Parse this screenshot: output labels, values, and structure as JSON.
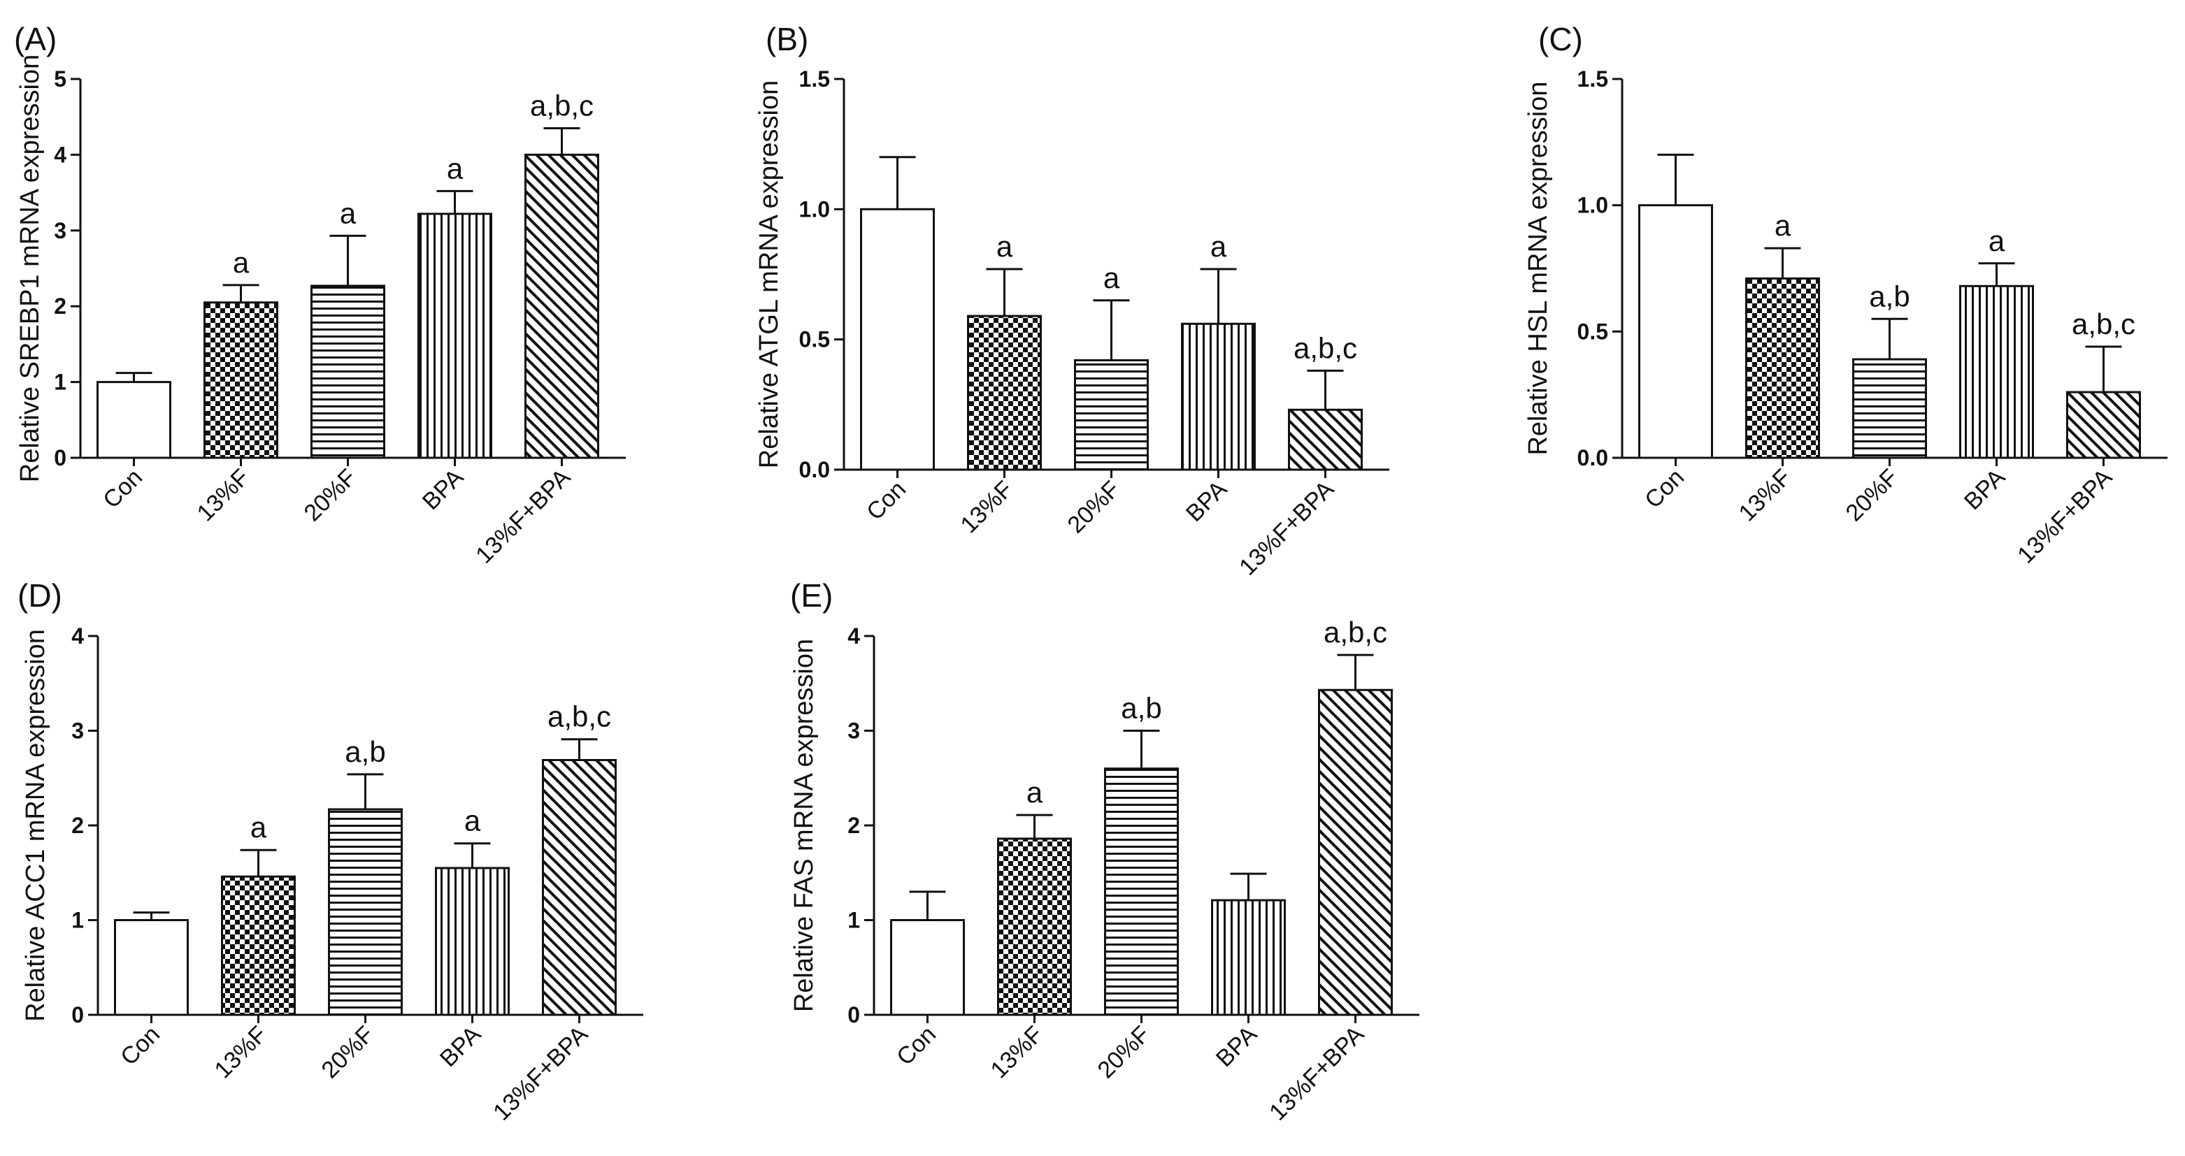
{
  "figure": {
    "background": "#ffffff",
    "ink_color": "#111111",
    "categories": [
      "Con",
      "13%F",
      "20%F",
      "BPA",
      "13%F+BPA"
    ],
    "patterns": [
      "blank",
      "checker-icon",
      "horizontal-lines-icon",
      "vertical-lines-icon",
      "diagonal-lines-icon"
    ]
  },
  "chart_data": [
    {
      "type": "bar",
      "panel": "(A)",
      "ylabel": "Relative SREBP1 mRNA expression",
      "ylim": [
        0,
        5
      ],
      "yticks": [
        "0",
        "1",
        "2",
        "3",
        "4",
        "5"
      ],
      "categories": [
        "Con",
        "13%F",
        "20%F",
        "BPA",
        "13%F+BPA"
      ],
      "values": [
        1.0,
        2.05,
        2.27,
        3.22,
        4.0
      ],
      "errors": [
        0.12,
        0.23,
        0.66,
        0.3,
        0.35
      ],
      "significance": [
        "",
        "a",
        "a",
        "a",
        "a,b,c"
      ]
    },
    {
      "type": "bar",
      "panel": "(B)",
      "ylabel": "Relative ATGL mRNA expression",
      "ylim": [
        0,
        1.5
      ],
      "yticks": [
        "0.0",
        "0.5",
        "1.0",
        "1.5"
      ],
      "categories": [
        "Con",
        "13%F",
        "20%F",
        "BPA",
        "13%F+BPA"
      ],
      "values": [
        1.0,
        0.59,
        0.42,
        0.56,
        0.23
      ],
      "errors": [
        0.2,
        0.18,
        0.23,
        0.21,
        0.15
      ],
      "significance": [
        "",
        "a",
        "a",
        "a",
        "a,b,c"
      ]
    },
    {
      "type": "bar",
      "panel": "(C)",
      "ylabel": "Relative HSL mRNA expression",
      "ylim": [
        0,
        1.5
      ],
      "yticks": [
        "0.0",
        "0.5",
        "1.0",
        "1.5"
      ],
      "categories": [
        "Con",
        "13%F",
        "20%F",
        "BPA",
        "13%F+BPA"
      ],
      "values": [
        1.0,
        0.71,
        0.39,
        0.68,
        0.26
      ],
      "errors": [
        0.2,
        0.12,
        0.16,
        0.09,
        0.18
      ],
      "significance": [
        "",
        "a",
        "a,b",
        "a",
        "a,b,c"
      ]
    },
    {
      "type": "bar",
      "panel": "(D)",
      "ylabel": "Relative ACC1 mRNA expression",
      "ylim": [
        0,
        4
      ],
      "yticks": [
        "0",
        "1",
        "2",
        "3",
        "4"
      ],
      "categories": [
        "Con",
        "13%F",
        "20%F",
        "BPA",
        "13%F+BPA"
      ],
      "values": [
        1.0,
        1.46,
        2.17,
        1.55,
        2.69
      ],
      "errors": [
        0.08,
        0.28,
        0.37,
        0.26,
        0.22
      ],
      "significance": [
        "",
        "a",
        "a,b",
        "a",
        "a,b,c"
      ]
    },
    {
      "type": "bar",
      "panel": "(E)",
      "ylabel": "Relative FAS mRNA expression",
      "ylim": [
        0,
        4
      ],
      "yticks": [
        "0",
        "1",
        "2",
        "3",
        "4"
      ],
      "categories": [
        "Con",
        "13%F",
        "20%F",
        "BPA",
        "13%F+BPA"
      ],
      "values": [
        1.0,
        1.86,
        2.6,
        1.21,
        3.43
      ],
      "errors": [
        0.3,
        0.25,
        0.4,
        0.28,
        0.37
      ],
      "significance": [
        "",
        "a",
        "a,b",
        "",
        "a,b,c"
      ]
    }
  ]
}
